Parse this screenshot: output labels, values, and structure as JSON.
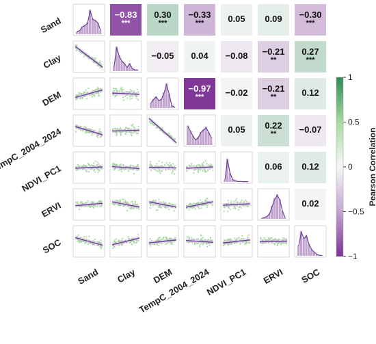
{
  "chart_data": {
    "type": "correlation-pair-matrix",
    "variables": [
      "Sand",
      "Clay",
      "DEM",
      "TempC_2004_2024",
      "NDVI_PC1",
      "ERVI",
      "SOC"
    ],
    "upper_triangle": [
      {
        "row": 0,
        "col": 1,
        "r": -0.83,
        "label": "−0.83",
        "stars": "***"
      },
      {
        "row": 0,
        "col": 2,
        "r": 0.3,
        "label": "0.30",
        "stars": "***"
      },
      {
        "row": 0,
        "col": 3,
        "r": -0.33,
        "label": "−0.33",
        "stars": "***"
      },
      {
        "row": 0,
        "col": 4,
        "r": 0.05,
        "label": "0.05",
        "stars": ""
      },
      {
        "row": 0,
        "col": 5,
        "r": 0.09,
        "label": "0.09",
        "stars": ""
      },
      {
        "row": 0,
        "col": 6,
        "r": -0.3,
        "label": "−0.30",
        "stars": "***"
      },
      {
        "row": 1,
        "col": 2,
        "r": -0.05,
        "label": "−0.05",
        "stars": ""
      },
      {
        "row": 1,
        "col": 3,
        "r": 0.04,
        "label": "0.04",
        "stars": ""
      },
      {
        "row": 1,
        "col": 4,
        "r": -0.08,
        "label": "−0.08",
        "stars": ""
      },
      {
        "row": 1,
        "col": 5,
        "r": -0.21,
        "label": "−0.21",
        "stars": "**"
      },
      {
        "row": 1,
        "col": 6,
        "r": 0.27,
        "label": "0.27",
        "stars": "***"
      },
      {
        "row": 2,
        "col": 3,
        "r": -0.97,
        "label": "−0.97",
        "stars": "***"
      },
      {
        "row": 2,
        "col": 4,
        "r": -0.02,
        "label": "−0.02",
        "stars": ""
      },
      {
        "row": 2,
        "col": 5,
        "r": -0.21,
        "label": "−0.21",
        "stars": "**"
      },
      {
        "row": 2,
        "col": 6,
        "r": 0.12,
        "label": "0.12",
        "stars": ""
      },
      {
        "row": 3,
        "col": 4,
        "r": 0.05,
        "label": "0.05",
        "stars": ""
      },
      {
        "row": 3,
        "col": 5,
        "r": 0.22,
        "label": "0.22",
        "stars": "**"
      },
      {
        "row": 3,
        "col": 6,
        "r": -0.07,
        "label": "−0.07",
        "stars": ""
      },
      {
        "row": 4,
        "col": 5,
        "r": 0.06,
        "label": "0.06",
        "stars": ""
      },
      {
        "row": 4,
        "col": 6,
        "r": 0.12,
        "label": "0.12",
        "stars": ""
      },
      {
        "row": 5,
        "col": 6,
        "r": 0.02,
        "label": "0.02",
        "stars": ""
      }
    ],
    "diagonal": "histogram with density curve",
    "lower_triangle": "scatter with linear regression line",
    "colorbar": {
      "label": "Pearson Correlation",
      "range": [
        -1,
        1
      ],
      "ticks": [
        1,
        0.5,
        0,
        -0.5,
        -1
      ],
      "tick_labels": [
        "1",
        "0.5",
        "0",
        "−0.5",
        "−1"
      ],
      "color_negative": "#7b3294",
      "color_zero": "#f7f7f7",
      "color_positive": "#2e8b57"
    },
    "scatter_color": "#a6dba0",
    "histogram_color": "#c2a5cf",
    "line_color": "#6a3d9a"
  }
}
